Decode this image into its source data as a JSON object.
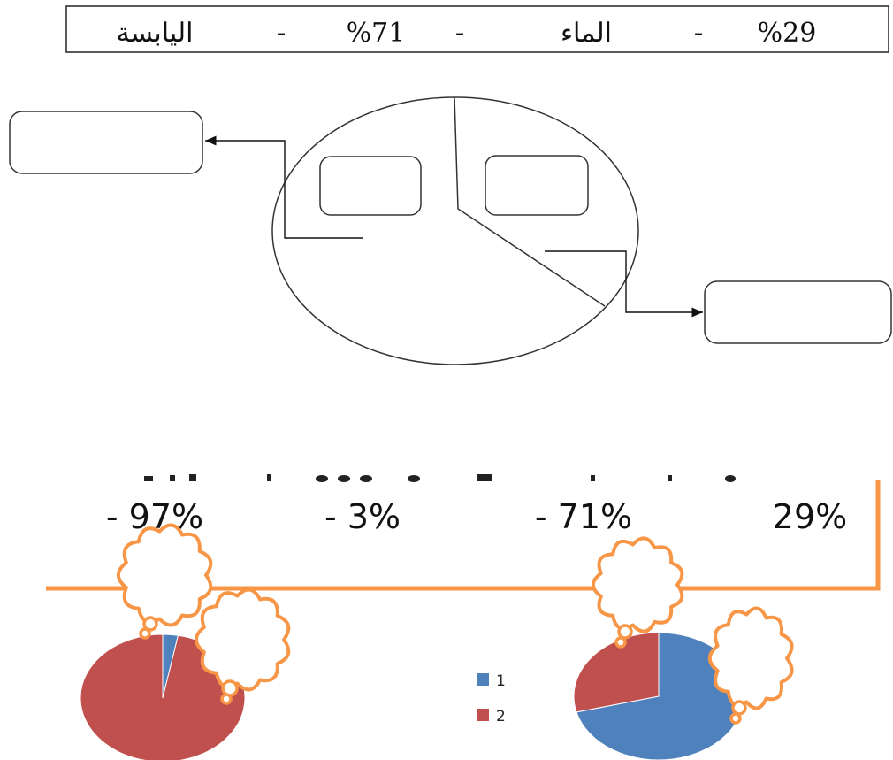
{
  "top_word_bank": {
    "items": [
      "%29",
      "-",
      "الماء",
      "-",
      "%71",
      "-",
      "اليابسة"
    ]
  },
  "middle_diagram": {
    "left_box_label": "",
    "right_box_label": "",
    "inner_left_box_label": "",
    "inner_right_box_label": ""
  },
  "bottom_strip": {
    "items": [
      "29%",
      "- 71%",
      "- 3%",
      "- 97%"
    ]
  },
  "chart_data": [
    {
      "type": "pie",
      "categories": [
        "1",
        "2"
      ],
      "values": [
        3,
        97
      ],
      "colors": [
        "#4f81bd",
        "#c0504d"
      ],
      "legend": "none",
      "title": ""
    },
    {
      "type": "pie",
      "categories": [
        "1",
        "2"
      ],
      "values": [
        71,
        29
      ],
      "colors": [
        "#4f81bd",
        "#c0504d"
      ],
      "legend": "left",
      "title": ""
    }
  ],
  "legend": {
    "items": [
      {
        "label": "1",
        "color": "#4f81bd"
      },
      {
        "label": "2",
        "color": "#c0504d"
      }
    ]
  },
  "colors": {
    "orange": "#f79646",
    "line": "#333333"
  }
}
